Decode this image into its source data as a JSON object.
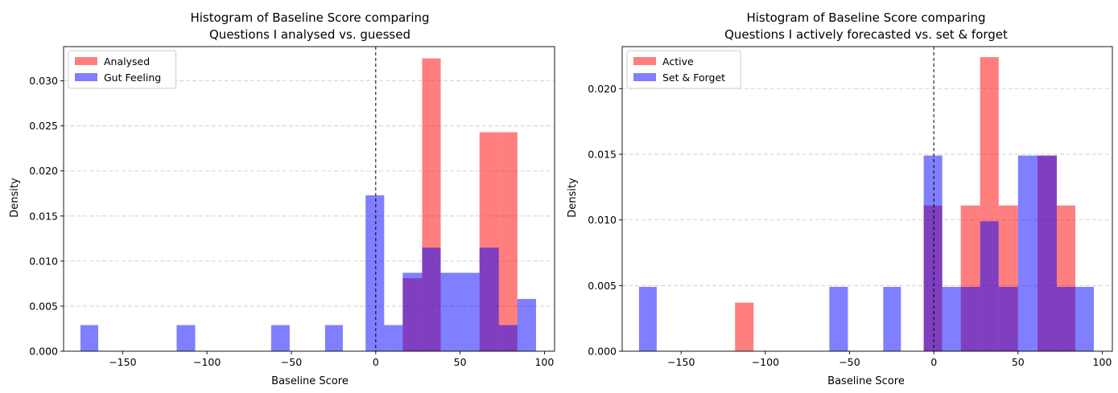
{
  "chart_data": [
    {
      "type": "bar",
      "title_line1": "Histogram of Baseline Score comparing",
      "title_line2": "Questions I analysed vs. guessed",
      "xlabel": "Baseline Score",
      "ylabel": "Density",
      "xlim": [
        -185,
        106
      ],
      "ylim": [
        0,
        0.0338
      ],
      "xticks": [
        -150,
        -100,
        -50,
        0,
        50,
        100
      ],
      "yticks": [
        0.0,
        0.005,
        0.01,
        0.015,
        0.02,
        0.025,
        0.03
      ],
      "ytick_labels": [
        "0.000",
        "0.005",
        "0.010",
        "0.015",
        "0.020",
        "0.025",
        "0.030"
      ],
      "xtick_labels": [
        "−150",
        "−100",
        "−50",
        "0",
        "50",
        "100"
      ],
      "grid": "y-dashed",
      "vline_x": 0,
      "legend_position": "upper-left",
      "series": [
        {
          "name": "Analysed",
          "color": "#ff0000",
          "bins": [
            {
              "x0": 16,
              "x1": 27.5,
              "density": 0.0081
            },
            {
              "x0": 27.5,
              "x1": 38.5,
              "density": 0.0325
            },
            {
              "x0": 61.5,
              "x1": 73,
              "density": 0.0243
            },
            {
              "x0": 73,
              "x1": 84,
              "density": 0.0243
            },
            {
              "x0": 84,
              "x1": 95,
              "density": 0.0
            }
          ]
        },
        {
          "name": "Gut Feeling",
          "color": "#0000ff",
          "bins": [
            {
              "x0": -175,
              "x1": -164.5,
              "density": 0.0029
            },
            {
              "x0": -118,
              "x1": -107,
              "density": 0.0029
            },
            {
              "x0": -62,
              "x1": -51,
              "density": 0.0029
            },
            {
              "x0": -30,
              "x1": -19.5,
              "density": 0.0029
            },
            {
              "x0": -6,
              "x1": 5,
              "density": 0.0173
            },
            {
              "x0": 5,
              "x1": 16,
              "density": 0.0029
            },
            {
              "x0": 16,
              "x1": 27.5,
              "density": 0.0087
            },
            {
              "x0": 27.5,
              "x1": 38.5,
              "density": 0.0115
            },
            {
              "x0": 38.5,
              "x1": 61.5,
              "density": 0.0087
            },
            {
              "x0": 61.5,
              "x1": 73,
              "density": 0.0115
            },
            {
              "x0": 73,
              "x1": 84,
              "density": 0.0029
            },
            {
              "x0": 84,
              "x1": 95,
              "density": 0.0058
            }
          ]
        }
      ]
    },
    {
      "type": "bar",
      "title_line1": "Histogram of Baseline Score comparing",
      "title_line2": "Questions I actively forecasted vs. set & forget",
      "xlabel": "Baseline Score",
      "ylabel": "Density",
      "xlim": [
        -185,
        106
      ],
      "ylim": [
        0,
        0.0232
      ],
      "xticks": [
        -150,
        -100,
        -50,
        0,
        50,
        100
      ],
      "yticks": [
        0.0,
        0.005,
        0.01,
        0.015,
        0.02
      ],
      "ytick_labels": [
        "0.000",
        "0.005",
        "0.010",
        "0.015",
        "0.020"
      ],
      "xtick_labels": [
        "−150",
        "−100",
        "−50",
        "0",
        "50",
        "100"
      ],
      "grid": "y-dashed",
      "vline_x": 0,
      "legend_position": "upper-left",
      "series": [
        {
          "name": "Active",
          "color": "#ff0000",
          "bins": [
            {
              "x0": -118,
              "x1": -107,
              "density": 0.0037
            },
            {
              "x0": -6,
              "x1": 5,
              "density": 0.0111
            },
            {
              "x0": 16,
              "x1": 27.5,
              "density": 0.0111
            },
            {
              "x0": 27.5,
              "x1": 38.5,
              "density": 0.0224
            },
            {
              "x0": 38.5,
              "x1": 50,
              "density": 0.0111
            },
            {
              "x0": 50,
              "x1": 61.5,
              "density": 0.0
            },
            {
              "x0": 61.5,
              "x1": 73,
              "density": 0.0149
            },
            {
              "x0": 73,
              "x1": 84,
              "density": 0.0111
            }
          ]
        },
        {
          "name": "Set & Forget",
          "color": "#0000ff",
          "bins": [
            {
              "x0": -175,
              "x1": -164.5,
              "density": 0.0049
            },
            {
              "x0": -62,
              "x1": -51,
              "density": 0.0049
            },
            {
              "x0": -30,
              "x1": -19.5,
              "density": 0.0049
            },
            {
              "x0": -6,
              "x1": 5,
              "density": 0.0149
            },
            {
              "x0": 5,
              "x1": 16,
              "density": 0.0049
            },
            {
              "x0": 16,
              "x1": 27.5,
              "density": 0.0049
            },
            {
              "x0": 27.5,
              "x1": 38.5,
              "density": 0.0099
            },
            {
              "x0": 38.5,
              "x1": 50,
              "density": 0.0049
            },
            {
              "x0": 50,
              "x1": 61.5,
              "density": 0.0149
            },
            {
              "x0": 61.5,
              "x1": 73,
              "density": 0.0149
            },
            {
              "x0": 73,
              "x1": 84,
              "density": 0.0049
            },
            {
              "x0": 84,
              "x1": 95,
              "density": 0.0049
            }
          ]
        }
      ]
    }
  ]
}
